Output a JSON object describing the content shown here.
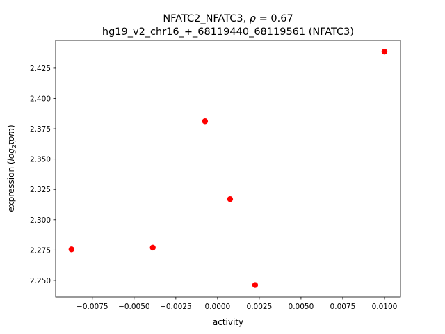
{
  "chart_data": {
    "type": "scatter",
    "title_line1": "NFATC2_NFATC3, ρ = 0.67",
    "title_line1_prefix": "NFATC2_NFATC3, ",
    "title_rho": "ρ",
    "title_rho_value": " = 0.67",
    "title_line2": "hg19_v2_chr16_+_68119440_68119561 (NFATC3)",
    "xlabel": "activity",
    "ylabel_prefix": "expression (",
    "ylabel_log": "log",
    "ylabel_sub": "2",
    "ylabel_tpm": "tpm",
    "ylabel_suffix": ")",
    "xlim": [
      -0.0097,
      0.01096
    ],
    "ylim": [
      2.2362,
      2.4479
    ],
    "xticks": [
      -0.0075,
      -0.005,
      -0.0025,
      0.0,
      0.0025,
      0.005,
      0.0075,
      0.01
    ],
    "xtick_labels": [
      "−0.0075",
      "−0.0050",
      "−0.0025",
      "0.0000",
      "0.0025",
      "0.0050",
      "0.0075",
      "0.0100"
    ],
    "yticks": [
      2.25,
      2.275,
      2.3,
      2.325,
      2.35,
      2.375,
      2.4,
      2.425
    ],
    "ytick_labels": [
      "2.250",
      "2.275",
      "2.300",
      "2.325",
      "2.350",
      "2.375",
      "2.400",
      "2.425"
    ],
    "point_color": "#ff0000",
    "grid": false,
    "points": [
      {
        "x": -0.00875,
        "y": 2.2756
      },
      {
        "x": -0.00388,
        "y": 2.277
      },
      {
        "x": -0.00075,
        "y": 2.3812
      },
      {
        "x": 0.00075,
        "y": 2.317
      },
      {
        "x": 0.00225,
        "y": 2.2462
      },
      {
        "x": 0.01,
        "y": 2.4386
      }
    ]
  }
}
